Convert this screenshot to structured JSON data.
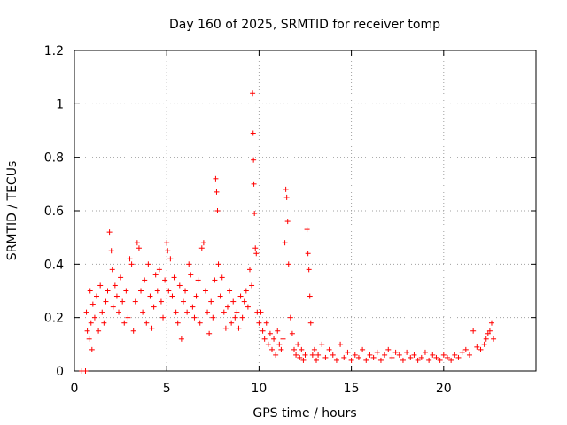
{
  "chart_data": {
    "type": "scatter",
    "title": "Day 160 of 2025, SRMTID for receiver tomp",
    "xlabel": "GPS time / hours",
    "ylabel": "SRMTID / TECUs",
    "xlim": [
      0,
      25
    ],
    "ylim": [
      0,
      1.2
    ],
    "xticks": [
      0,
      5,
      10,
      15,
      20
    ],
    "xtick_labels": [
      "0",
      "5",
      "10",
      "15",
      "20"
    ],
    "yticks": [
      0,
      0.2,
      0.4,
      0.6,
      0.8,
      1.0,
      1.2
    ],
    "ytick_labels": [
      "0",
      "0.2",
      "0.4",
      "0.6",
      "0.8",
      "1",
      "1.2"
    ],
    "grid": true,
    "marker": "+",
    "marker_color": "#ff0000",
    "series": [
      {
        "name": "SRMTID",
        "points": [
          [
            0.4,
            0.0
          ],
          [
            0.6,
            0.0
          ],
          [
            0.65,
            0.22
          ],
          [
            0.7,
            0.15
          ],
          [
            0.8,
            0.12
          ],
          [
            0.85,
            0.3
          ],
          [
            0.9,
            0.18
          ],
          [
            0.95,
            0.08
          ],
          [
            1.0,
            0.25
          ],
          [
            1.1,
            0.2
          ],
          [
            1.2,
            0.28
          ],
          [
            1.3,
            0.15
          ],
          [
            1.4,
            0.32
          ],
          [
            1.5,
            0.22
          ],
          [
            1.6,
            0.18
          ],
          [
            1.7,
            0.26
          ],
          [
            1.8,
            0.3
          ],
          [
            1.9,
            0.52
          ],
          [
            2.0,
            0.45
          ],
          [
            2.05,
            0.38
          ],
          [
            2.1,
            0.24
          ],
          [
            2.2,
            0.32
          ],
          [
            2.3,
            0.28
          ],
          [
            2.4,
            0.22
          ],
          [
            2.5,
            0.35
          ],
          [
            2.6,
            0.26
          ],
          [
            2.7,
            0.18
          ],
          [
            2.8,
            0.3
          ],
          [
            2.9,
            0.2
          ],
          [
            3.0,
            0.42
          ],
          [
            3.1,
            0.4
          ],
          [
            3.2,
            0.15
          ],
          [
            3.3,
            0.26
          ],
          [
            3.4,
            0.48
          ],
          [
            3.5,
            0.46
          ],
          [
            3.6,
            0.3
          ],
          [
            3.7,
            0.22
          ],
          [
            3.8,
            0.34
          ],
          [
            3.9,
            0.18
          ],
          [
            4.0,
            0.4
          ],
          [
            4.1,
            0.28
          ],
          [
            4.2,
            0.16
          ],
          [
            4.3,
            0.24
          ],
          [
            4.4,
            0.36
          ],
          [
            4.5,
            0.3
          ],
          [
            4.6,
            0.38
          ],
          [
            4.7,
            0.26
          ],
          [
            4.8,
            0.2
          ],
          [
            4.9,
            0.34
          ],
          [
            5.0,
            0.48
          ],
          [
            5.05,
            0.45
          ],
          [
            5.1,
            0.3
          ],
          [
            5.2,
            0.42
          ],
          [
            5.3,
            0.28
          ],
          [
            5.4,
            0.35
          ],
          [
            5.5,
            0.22
          ],
          [
            5.6,
            0.18
          ],
          [
            5.7,
            0.32
          ],
          [
            5.8,
            0.12
          ],
          [
            5.9,
            0.26
          ],
          [
            6.0,
            0.3
          ],
          [
            6.1,
            0.22
          ],
          [
            6.2,
            0.4
          ],
          [
            6.3,
            0.36
          ],
          [
            6.4,
            0.24
          ],
          [
            6.5,
            0.2
          ],
          [
            6.6,
            0.28
          ],
          [
            6.7,
            0.34
          ],
          [
            6.8,
            0.18
          ],
          [
            6.9,
            0.46
          ],
          [
            7.0,
            0.48
          ],
          [
            7.1,
            0.3
          ],
          [
            7.2,
            0.22
          ],
          [
            7.3,
            0.14
          ],
          [
            7.4,
            0.26
          ],
          [
            7.5,
            0.2
          ],
          [
            7.6,
            0.34
          ],
          [
            7.65,
            0.72
          ],
          [
            7.7,
            0.67
          ],
          [
            7.75,
            0.6
          ],
          [
            7.8,
            0.4
          ],
          [
            7.9,
            0.28
          ],
          [
            8.0,
            0.35
          ],
          [
            8.1,
            0.22
          ],
          [
            8.2,
            0.16
          ],
          [
            8.3,
            0.24
          ],
          [
            8.4,
            0.3
          ],
          [
            8.5,
            0.18
          ],
          [
            8.6,
            0.26
          ],
          [
            8.7,
            0.2
          ],
          [
            8.8,
            0.22
          ],
          [
            8.9,
            0.16
          ],
          [
            9.0,
            0.28
          ],
          [
            9.1,
            0.2
          ],
          [
            9.2,
            0.26
          ],
          [
            9.3,
            0.3
          ],
          [
            9.4,
            0.24
          ],
          [
            9.5,
            0.38
          ],
          [
            9.6,
            0.32
          ],
          [
            9.65,
            1.04
          ],
          [
            9.68,
            0.89
          ],
          [
            9.7,
            0.79
          ],
          [
            9.72,
            0.7
          ],
          [
            9.75,
            0.59
          ],
          [
            9.8,
            0.46
          ],
          [
            9.85,
            0.44
          ],
          [
            9.9,
            0.22
          ],
          [
            10.0,
            0.18
          ],
          [
            10.1,
            0.22
          ],
          [
            10.2,
            0.15
          ],
          [
            10.3,
            0.12
          ],
          [
            10.4,
            0.18
          ],
          [
            10.5,
            0.1
          ],
          [
            10.6,
            0.14
          ],
          [
            10.7,
            0.08
          ],
          [
            10.8,
            0.12
          ],
          [
            10.9,
            0.06
          ],
          [
            11.0,
            0.15
          ],
          [
            11.1,
            0.1
          ],
          [
            11.2,
            0.08
          ],
          [
            11.3,
            0.12
          ],
          [
            11.4,
            0.48
          ],
          [
            11.45,
            0.68
          ],
          [
            11.5,
            0.65
          ],
          [
            11.55,
            0.56
          ],
          [
            11.6,
            0.4
          ],
          [
            11.7,
            0.2
          ],
          [
            11.8,
            0.14
          ],
          [
            11.9,
            0.08
          ],
          [
            12.0,
            0.06
          ],
          [
            12.1,
            0.1
          ],
          [
            12.2,
            0.05
          ],
          [
            12.3,
            0.08
          ],
          [
            12.4,
            0.04
          ],
          [
            12.5,
            0.06
          ],
          [
            12.6,
            0.53
          ],
          [
            12.65,
            0.44
          ],
          [
            12.7,
            0.38
          ],
          [
            12.75,
            0.28
          ],
          [
            12.8,
            0.18
          ],
          [
            12.9,
            0.06
          ],
          [
            13.0,
            0.08
          ],
          [
            13.1,
            0.04
          ],
          [
            13.2,
            0.06
          ],
          [
            13.4,
            0.1
          ],
          [
            13.6,
            0.05
          ],
          [
            13.8,
            0.08
          ],
          [
            14.0,
            0.06
          ],
          [
            14.2,
            0.04
          ],
          [
            14.4,
            0.1
          ],
          [
            14.6,
            0.05
          ],
          [
            14.8,
            0.07
          ],
          [
            15.0,
            0.04
          ],
          [
            15.2,
            0.06
          ],
          [
            15.4,
            0.05
          ],
          [
            15.6,
            0.08
          ],
          [
            15.8,
            0.04
          ],
          [
            16.0,
            0.06
          ],
          [
            16.2,
            0.05
          ],
          [
            16.4,
            0.07
          ],
          [
            16.6,
            0.04
          ],
          [
            16.8,
            0.06
          ],
          [
            17.0,
            0.08
          ],
          [
            17.2,
            0.05
          ],
          [
            17.4,
            0.07
          ],
          [
            17.6,
            0.06
          ],
          [
            17.8,
            0.04
          ],
          [
            18.0,
            0.07
          ],
          [
            18.2,
            0.05
          ],
          [
            18.4,
            0.06
          ],
          [
            18.6,
            0.04
          ],
          [
            18.8,
            0.05
          ],
          [
            19.0,
            0.07
          ],
          [
            19.2,
            0.04
          ],
          [
            19.4,
            0.06
          ],
          [
            19.6,
            0.05
          ],
          [
            19.8,
            0.04
          ],
          [
            20.0,
            0.06
          ],
          [
            20.2,
            0.05
          ],
          [
            20.4,
            0.04
          ],
          [
            20.6,
            0.06
          ],
          [
            20.8,
            0.05
          ],
          [
            21.0,
            0.07
          ],
          [
            21.2,
            0.08
          ],
          [
            21.4,
            0.06
          ],
          [
            21.6,
            0.15
          ],
          [
            21.8,
            0.09
          ],
          [
            22.0,
            0.08
          ],
          [
            22.2,
            0.1
          ],
          [
            22.3,
            0.12
          ],
          [
            22.4,
            0.14
          ],
          [
            22.5,
            0.15
          ],
          [
            22.6,
            0.18
          ],
          [
            22.7,
            0.12
          ]
        ]
      }
    ]
  }
}
